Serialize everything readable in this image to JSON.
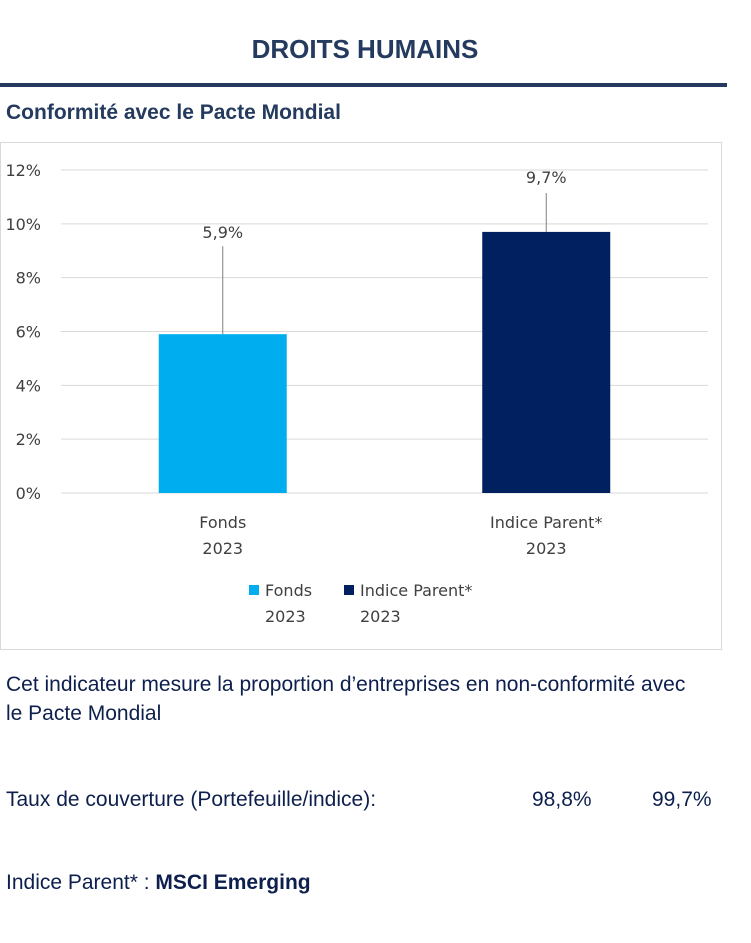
{
  "header": {
    "title": "DROITS HUMAINS",
    "subtitle": "Conformité avec le Pacte Mondial"
  },
  "chart_data": {
    "type": "bar",
    "categories": [
      [
        "Fonds",
        "2023"
      ],
      [
        "Indice Parent*",
        "2023"
      ]
    ],
    "values": [
      5.9,
      9.7
    ],
    "data_labels": [
      "5,9%",
      "9,7%"
    ],
    "bar_colors": [
      "#00aeef",
      "#002060"
    ],
    "y_ticks": [
      0,
      2,
      4,
      6,
      8,
      10,
      12
    ],
    "y_tick_labels": [
      "0%",
      "2%",
      "4%",
      "6%",
      "8%",
      "10%",
      "12%"
    ],
    "ylim": [
      0,
      12
    ],
    "grid": true,
    "legend_position": "bottom",
    "legend": [
      {
        "label": [
          "Fonds",
          "2023"
        ],
        "color": "#00aeef"
      },
      {
        "label": [
          "Indice Parent*",
          "2023"
        ],
        "color": "#002060"
      }
    ]
  },
  "description": "Cet indicateur mesure la proportion d’entreprises en non-conformité avec le Pacte Mondial",
  "coverage": {
    "label": "Taux de couverture (Portefeuille/indice):",
    "portfolio": "98,8%",
    "index": "99,7%"
  },
  "parent_index": {
    "label": "Indice Parent* : ",
    "name": "MSCI Emerging"
  }
}
